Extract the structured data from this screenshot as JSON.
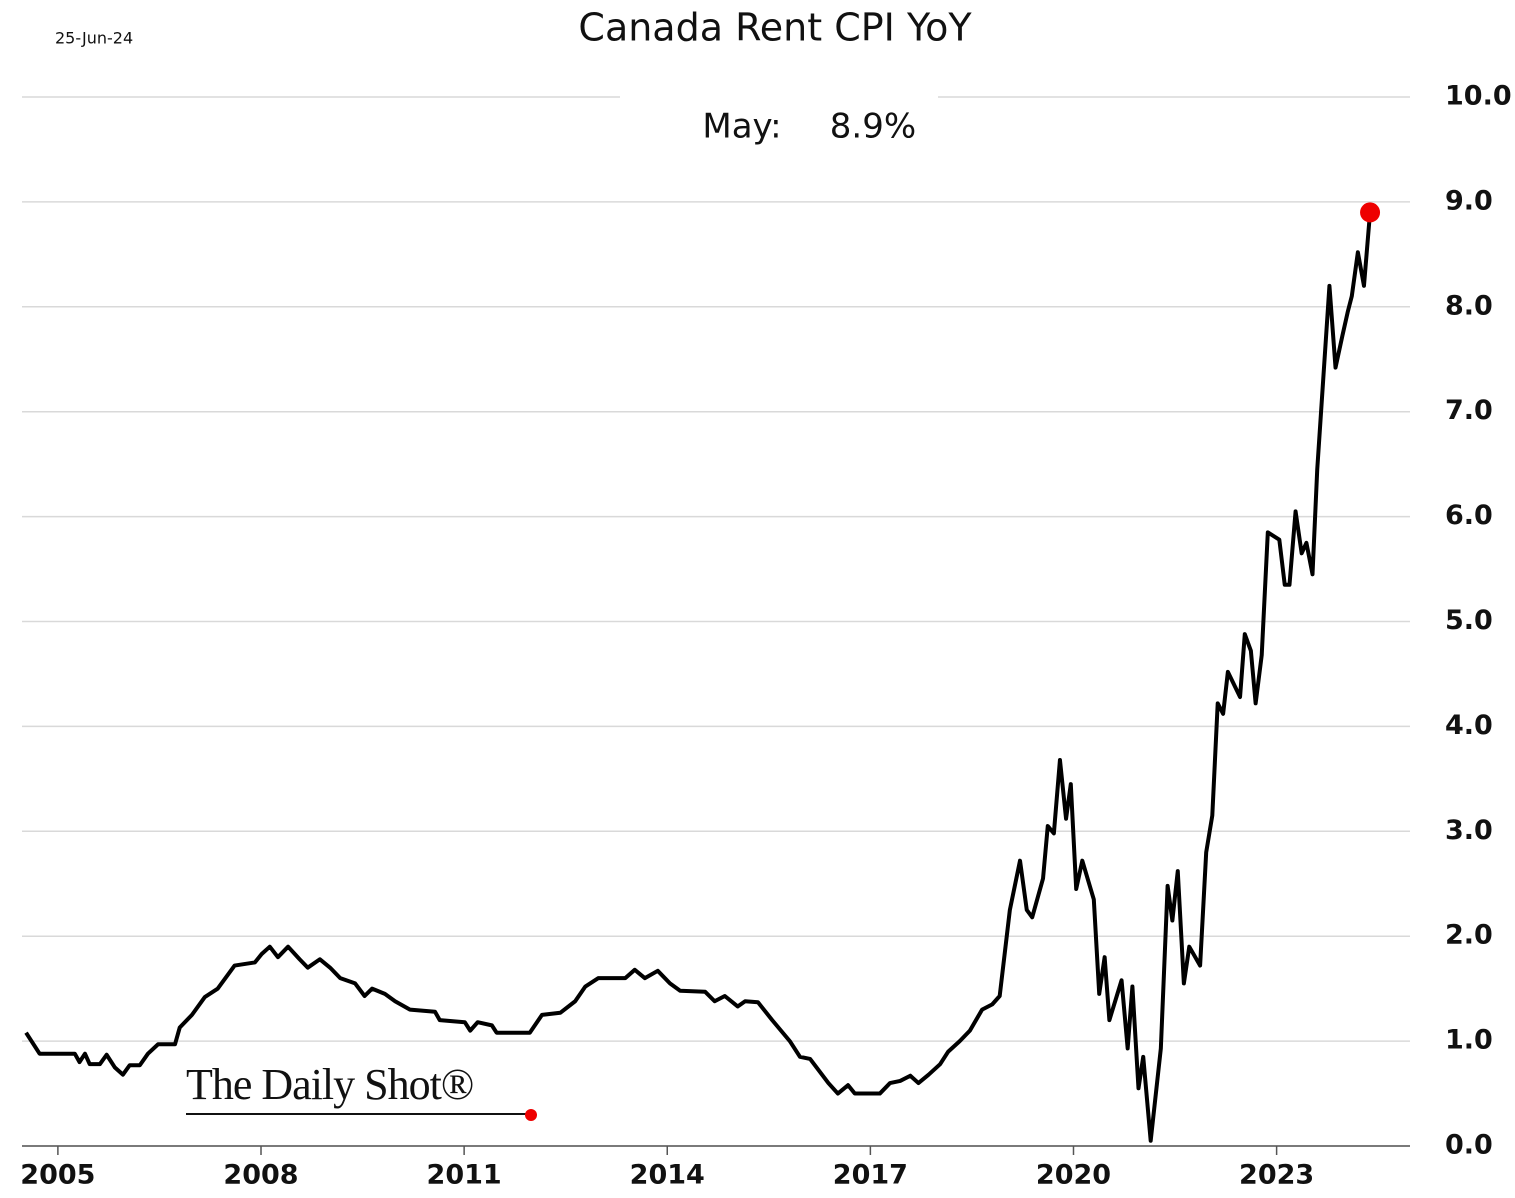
{
  "chart_data": {
    "type": "line",
    "title": "Canada Rent CPI YoY",
    "date": "25-Jun-24",
    "annotation": [
      "May:",
      "8.9%"
    ],
    "source": "The Daily Shot®",
    "color": "#000000",
    "last_point_color": "#ee0000",
    "grid": true,
    "y_axis_side": "right",
    "xlim": [
      2004.47,
      2024.97
    ],
    "ylim": [
      0,
      10
    ],
    "xticks": [
      2005,
      2008,
      2011,
      2014,
      2017,
      2020,
      2023
    ],
    "yticks": [
      {
        "value": 0,
        "label": "0.0"
      },
      {
        "value": 1,
        "label": "1.0"
      },
      {
        "value": 2,
        "label": "2.0"
      },
      {
        "value": 3,
        "label": "3.0"
      },
      {
        "value": 4,
        "label": "4.0"
      },
      {
        "value": 5,
        "label": "5.0"
      },
      {
        "value": 6,
        "label": "6.0"
      },
      {
        "value": 7,
        "label": "7.0"
      },
      {
        "value": 8,
        "label": "8.0"
      },
      {
        "value": 9,
        "label": "9.0"
      },
      {
        "value": 10,
        "label": "10.0"
      }
    ],
    "x": [
      2004.53,
      2004.73,
      2005.25,
      2005.32,
      2005.4,
      2005.47,
      2005.62,
      2005.72,
      2005.84,
      2005.96,
      2006.06,
      2006.21,
      2006.33,
      2006.48,
      2006.73,
      2006.8,
      2006.98,
      2007.17,
      2007.36,
      2007.61,
      2007.91,
      2008.01,
      2008.13,
      2008.25,
      2008.4,
      2008.57,
      2008.69,
      2008.87,
      2009.02,
      2009.17,
      2009.39,
      2009.53,
      2009.64,
      2009.83,
      2009.98,
      2010.2,
      2010.57,
      2010.64,
      2011.01,
      2011.09,
      2011.2,
      2011.41,
      2011.48,
      2011.97,
      2012.15,
      2012.42,
      2012.64,
      2012.79,
      2012.98,
      2013.38,
      2013.52,
      2013.67,
      2013.86,
      2014.04,
      2014.19,
      2014.56,
      2014.7,
      2014.85,
      2015.04,
      2015.15,
      2015.34,
      2015.55,
      2015.81,
      2015.96,
      2016.11,
      2016.38,
      2016.52,
      2016.67,
      2016.77,
      2017.14,
      2017.29,
      2017.44,
      2017.59,
      2017.71,
      2017.86,
      2018.03,
      2018.15,
      2018.32,
      2018.47,
      2018.65,
      2018.8,
      2018.91,
      2019.06,
      2019.21,
      2019.31,
      2019.39,
      2019.55,
      2019.62,
      2019.71,
      2019.8,
      2019.89,
      2019.96,
      2020.04,
      2020.13,
      2020.3,
      2020.38,
      2020.46,
      2020.53,
      2020.71,
      2020.8,
      2020.87,
      2020.96,
      2021.03,
      2021.14,
      2021.29,
      2021.39,
      2021.46,
      2021.54,
      2021.63,
      2021.71,
      2021.87,
      2021.96,
      2022.05,
      2022.13,
      2022.21,
      2022.28,
      2022.46,
      2022.53,
      2022.62,
      2022.69,
      2022.78,
      2022.87,
      2023.04,
      2023.12,
      2023.19,
      2023.28,
      2023.37,
      2023.44,
      2023.53,
      2023.6,
      2023.78,
      2023.87,
      2023.97,
      2024.05,
      2024.11,
      2024.2,
      2024.29,
      2024.38
    ],
    "values": [
      1.08,
      0.88,
      0.88,
      0.8,
      0.88,
      0.78,
      0.78,
      0.87,
      0.75,
      0.68,
      0.77,
      0.77,
      0.88,
      0.97,
      0.97,
      1.13,
      1.25,
      1.42,
      1.5,
      1.72,
      1.75,
      1.83,
      1.9,
      1.8,
      1.9,
      1.78,
      1.7,
      1.78,
      1.7,
      1.6,
      1.55,
      1.43,
      1.5,
      1.45,
      1.38,
      1.3,
      1.28,
      1.2,
      1.18,
      1.1,
      1.18,
      1.15,
      1.08,
      1.08,
      1.25,
      1.27,
      1.38,
      1.52,
      1.6,
      1.6,
      1.68,
      1.6,
      1.67,
      1.55,
      1.48,
      1.47,
      1.38,
      1.43,
      1.33,
      1.38,
      1.37,
      1.2,
      1.0,
      0.85,
      0.83,
      0.6,
      0.5,
      0.58,
      0.5,
      0.5,
      0.6,
      0.62,
      0.67,
      0.6,
      0.68,
      0.78,
      0.9,
      1.0,
      1.1,
      1.3,
      1.35,
      1.43,
      2.25,
      2.72,
      2.25,
      2.18,
      2.55,
      3.05,
      2.98,
      3.68,
      3.12,
      3.45,
      2.45,
      2.72,
      2.35,
      1.45,
      1.8,
      1.2,
      1.58,
      0.93,
      1.52,
      0.55,
      0.85,
      0.05,
      0.93,
      2.48,
      2.15,
      2.62,
      1.55,
      1.9,
      1.72,
      2.8,
      3.15,
      4.22,
      4.12,
      4.52,
      4.28,
      4.88,
      4.72,
      4.22,
      4.68,
      5.85,
      5.78,
      5.35,
      5.35,
      6.05,
      5.65,
      5.75,
      5.45,
      6.45,
      8.2,
      7.42,
      7.72,
      7.95,
      8.1,
      8.52,
      8.2,
      8.9
    ]
  }
}
